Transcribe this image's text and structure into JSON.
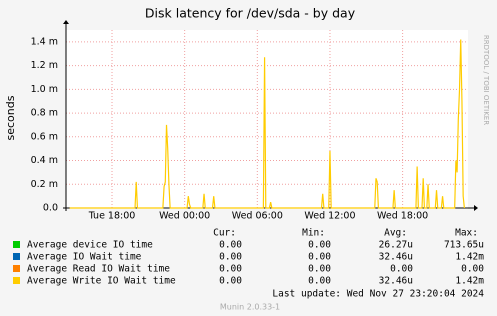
{
  "chart_data": {
    "type": "line",
    "title": "Disk latency for /dev/sda - by day",
    "y_label": "seconds",
    "side_note": "RRDTOOL / TOBI OETIKER",
    "x": [
      14.5,
      19.9,
      20.0,
      20.1,
      22.2,
      22.3,
      22.4,
      22.5,
      22.6,
      22.7,
      22.8,
      24.2,
      24.3,
      24.4,
      24.5,
      25.5,
      25.6,
      25.7,
      26.3,
      26.4,
      26.5,
      30.5,
      30.6,
      30.7,
      31.0,
      31.1,
      31.2,
      35.3,
      35.4,
      35.5,
      35.9,
      36.0,
      36.1,
      39.7,
      39.8,
      39.9,
      40.0,
      41.2,
      41.3,
      41.4,
      43.1,
      43.2,
      43.3,
      43.6,
      43.7,
      43.8,
      44.0,
      44.1,
      44.2,
      44.7,
      44.8,
      44.9,
      45.2,
      45.3,
      45.4,
      46.3,
      46.4,
      46.5,
      46.6,
      46.7,
      46.8,
      46.9,
      47.0,
      47.1
    ],
    "xlim": [
      14.2,
      47.4
    ],
    "xticks": [
      {
        "value": 18,
        "label": "Tue 18:00"
      },
      {
        "value": 24,
        "label": "Wed 00:00"
      },
      {
        "value": 30,
        "label": "Wed 06:00"
      },
      {
        "value": 36,
        "label": "Wed 12:00"
      },
      {
        "value": 42,
        "label": "Wed 18:00"
      }
    ],
    "ylim": [
      0,
      0.0015
    ],
    "yticks": [
      {
        "value": 0,
        "label": "0.0"
      },
      {
        "value": 0.0002,
        "label": "0.2 m"
      },
      {
        "value": 0.0004,
        "label": "0.4 m"
      },
      {
        "value": 0.0006,
        "label": "0.6 m"
      },
      {
        "value": 0.0008,
        "label": "0.8 m"
      },
      {
        "value": 0.001,
        "label": "1.0 m"
      },
      {
        "value": 0.0012,
        "label": "1.2 m"
      },
      {
        "value": 0.0014,
        "label": "1.4 m"
      }
    ],
    "grid": true,
    "stat_headers": [
      "Cur:",
      "Min:",
      "Avg:",
      "Max:"
    ],
    "series": [
      {
        "name": "Average device IO time",
        "color": "#00cc00",
        "stats": [
          "0.00",
          "0.00",
          "26.27u",
          "713.65u"
        ]
      },
      {
        "name": "Average IO Wait time",
        "color": "#0066b3",
        "stats": [
          "0.00",
          "0.00",
          "32.46u",
          "1.42m"
        ]
      },
      {
        "name": "Average Read IO Wait time",
        "color": "#ff8000",
        "stats": [
          "0.00",
          "0.00",
          "0.00",
          "0.00"
        ]
      },
      {
        "name": "Average Write IO Wait time",
        "color": "#ffcc00",
        "stats": [
          "0.00",
          "0.00",
          "32.46u",
          "1.42m"
        ],
        "values": [
          0,
          0,
          0.00022,
          0,
          0,
          0.00018,
          0.00022,
          0.0007,
          0.0005,
          0.0002,
          0,
          0,
          0.0001,
          3e-05,
          0,
          0,
          0.00012,
          0,
          0,
          0.0001,
          0,
          0,
          0.00127,
          0,
          0,
          5e-05,
          0,
          0,
          0.00012,
          0,
          0,
          0.00048,
          0,
          0,
          0.00025,
          0.00022,
          0,
          0,
          0.00015,
          0,
          0,
          0.00035,
          0,
          0,
          0.00025,
          0,
          0,
          0.0002,
          0,
          0,
          0.00015,
          0,
          0,
          0.0001,
          0,
          0,
          0.0004,
          0.0003,
          0.00075,
          0.001,
          0.00142,
          0.0009,
          0.0001,
          0
        ]
      }
    ],
    "last_update": "Last update:  Wed Nov 27 23:20:04 2024",
    "footer": "Munin 2.0.33-1"
  }
}
